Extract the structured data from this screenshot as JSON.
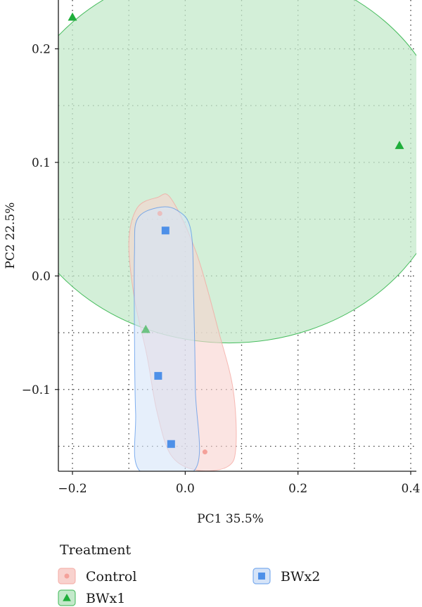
{
  "chart_data": {
    "type": "scatter",
    "xlabel": "PC1 35.5%",
    "ylabel": "PC2 22.5%",
    "xlim": [
      -0.225,
      0.41
    ],
    "ylim": [
      -0.172,
      0.243
    ],
    "x_ticks": [
      -0.2,
      0.0,
      0.2,
      0.4
    ],
    "x_tick_labels": [
      "−0.2",
      "0.0",
      "0.2",
      "0.4"
    ],
    "y_ticks": [
      -0.1,
      0.0,
      0.1,
      0.2
    ],
    "y_tick_labels": [
      "−0.1",
      "0.0",
      "0.1",
      "0.2"
    ],
    "grid": "dotted",
    "legend": {
      "title": "Treatment",
      "placement": "bottom",
      "entries": [
        "Control",
        "BWx2",
        "BWx1"
      ]
    },
    "series": [
      {
        "name": "Control",
        "marker": "circle",
        "color": "#F4A19A",
        "fill": "#F8D2CE",
        "points": [
          [
            -0.045,
            0.055
          ],
          [
            0.035,
            -0.155
          ]
        ],
        "hull": [
          [
            -0.025,
            0.068
          ],
          [
            0.02,
            0.02
          ],
          [
            0.06,
            -0.05
          ],
          [
            0.085,
            -0.1
          ],
          [
            0.09,
            -0.15
          ],
          [
            0.075,
            -0.168
          ],
          [
            0.02,
            -0.171
          ],
          [
            -0.025,
            -0.158
          ],
          [
            -0.05,
            -0.12
          ],
          [
            -0.068,
            -0.07
          ],
          [
            -0.09,
            -0.02
          ],
          [
            -0.1,
            0.03
          ],
          [
            -0.085,
            0.06
          ],
          [
            -0.05,
            0.069
          ]
        ]
      },
      {
        "name": "BWx2",
        "marker": "square",
        "color": "#4E90E8",
        "fill": "#D6E4F8",
        "points": [
          [
            -0.035,
            0.04
          ],
          [
            -0.048,
            -0.088
          ],
          [
            -0.025,
            -0.148
          ]
        ],
        "hull": [
          [
            -0.05,
            0.06
          ],
          [
            -0.015,
            0.058
          ],
          [
            0.01,
            0.04
          ],
          [
            0.015,
            -0.02
          ],
          [
            0.018,
            -0.1
          ],
          [
            0.018,
            -0.17
          ],
          [
            -0.08,
            -0.172
          ],
          [
            -0.088,
            -0.12
          ],
          [
            -0.09,
            -0.05
          ],
          [
            -0.09,
            0.02
          ],
          [
            -0.085,
            0.05
          ]
        ]
      },
      {
        "name": "BWx1",
        "marker": "triangle",
        "color": "#1FAE3B",
        "fill": "#C4E9CB",
        "points": [
          [
            -0.2,
            0.228
          ],
          [
            -0.07,
            -0.047
          ],
          [
            0.38,
            0.115
          ]
        ],
        "ellipse": {
          "cx": 0.078,
          "cy": 0.107,
          "rx": 0.39,
          "ry": 0.166
        }
      }
    ]
  }
}
